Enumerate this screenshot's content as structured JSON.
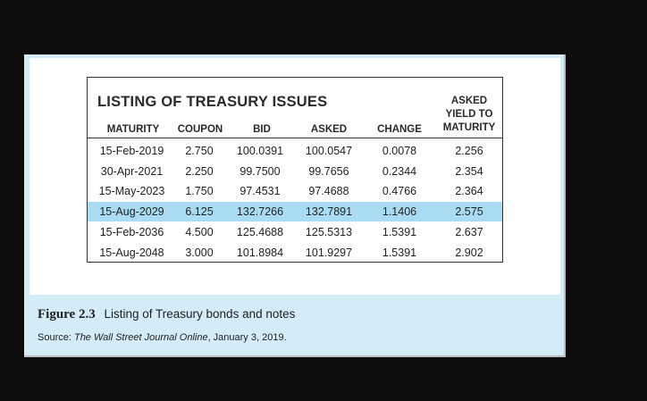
{
  "table": {
    "title": "LISTING OF TREASURY ISSUES",
    "headers": {
      "maturity": "MATURITY",
      "coupon": "COUPON",
      "bid": "BID",
      "asked": "ASKED",
      "change": "CHANGE",
      "ytm_line1": "ASKED",
      "ytm_line2": "YIELD TO",
      "ytm_line3": "MATURITY"
    },
    "rows": [
      {
        "maturity": "15-Feb-2019",
        "coupon": "2.750",
        "bid": "100.0391",
        "asked": "100.0547",
        "change": "0.0078",
        "ytm": "2.256"
      },
      {
        "maturity": "30-Apr-2021",
        "coupon": "2.250",
        "bid": "99.7500",
        "asked": "99.7656",
        "change": "0.2344",
        "ytm": "2.354"
      },
      {
        "maturity": "15-May-2023",
        "coupon": "1.750",
        "bid": "97.4531",
        "asked": "97.4688",
        "change": "0.4766",
        "ytm": "2.364"
      },
      {
        "maturity": "15-Aug-2029",
        "coupon": "6.125",
        "bid": "132.7266",
        "asked": "132.7891",
        "change": "1.1406",
        "ytm": "2.575"
      },
      {
        "maturity": "15-Feb-2036",
        "coupon": "4.500",
        "bid": "125.4688",
        "asked": "125.5313",
        "change": "1.5391",
        "ytm": "2.637"
      },
      {
        "maturity": "15-Aug-2048",
        "coupon": "3.000",
        "bid": "101.8984",
        "asked": "101.9297",
        "change": "1.5391",
        "ytm": "2.902"
      }
    ],
    "highlight_color": "#a9dcf2"
  },
  "caption": {
    "figure_label": "Figure 2.3",
    "text": "Listing of Treasury bonds and notes"
  },
  "source": {
    "prefix": "Source: ",
    "publication": "The Wall Street Journal Online",
    "suffix": ", January 3, 2019."
  }
}
